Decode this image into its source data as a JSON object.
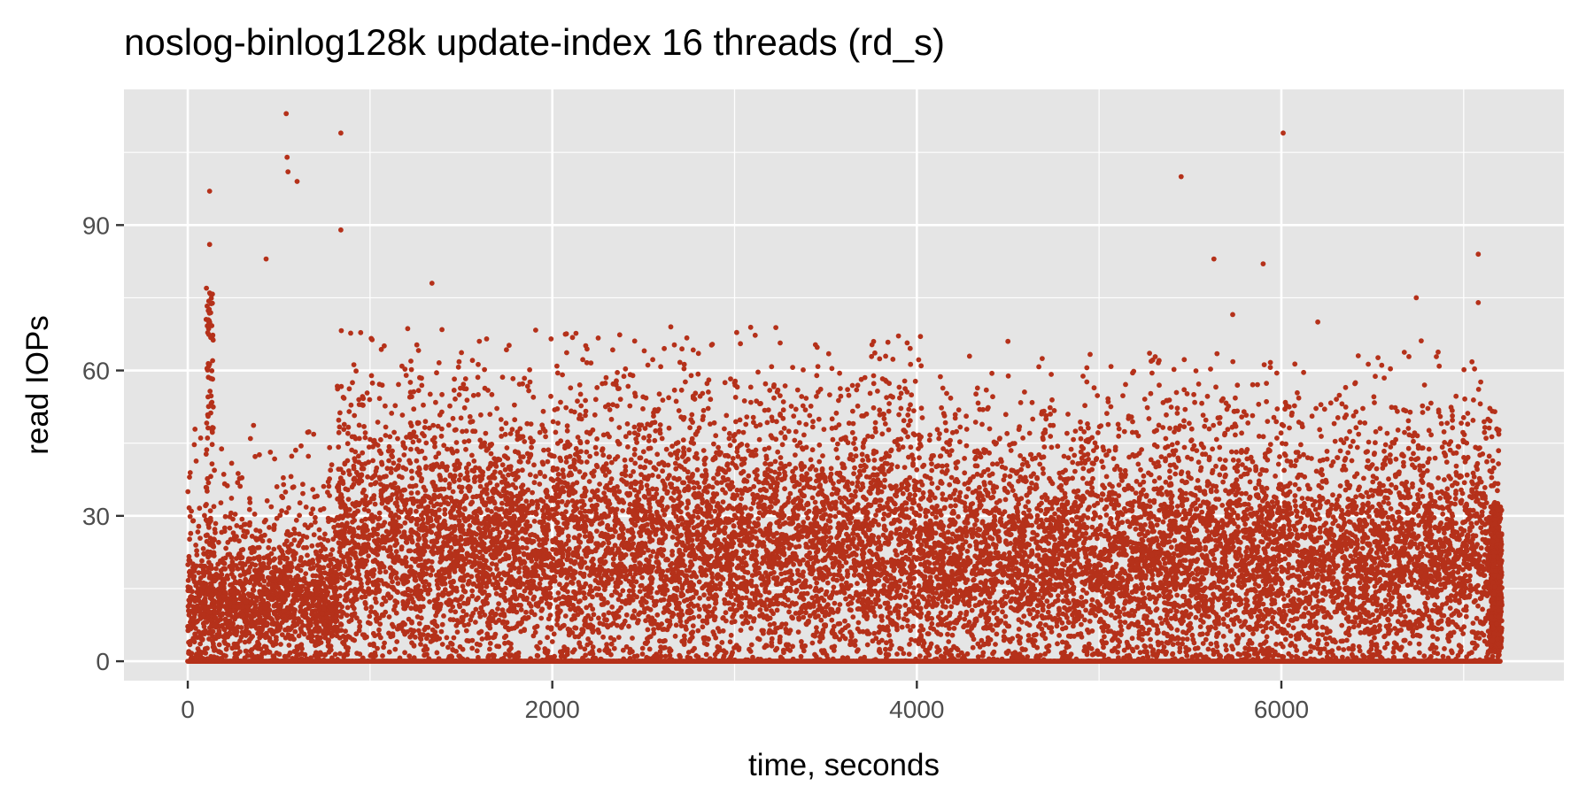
{
  "chart_data": {
    "type": "scatter",
    "title": "noslog-binlog128k update-index 16 threads (rd_s)",
    "xlabel": "time, seconds",
    "ylabel": "read IOPs",
    "xlim": [
      -350,
      7550
    ],
    "ylim": [
      -4,
      118
    ],
    "x_ticks": [
      0,
      2000,
      4000,
      6000
    ],
    "x_tick_labels": [
      "0",
      "2000",
      "4000",
      "6000"
    ],
    "y_ticks": [
      0,
      30,
      60,
      90
    ],
    "y_tick_labels": [
      "0",
      "30",
      "60",
      "90"
    ],
    "grid": true,
    "legend": "none",
    "colors": {
      "points": "#b5311a",
      "panel": "#e5e5e5",
      "grid": "#ffffff"
    },
    "summary_by_phase": [
      {
        "x_range": [
          0,
          820
        ],
        "typical_y_range": [
          0,
          25
        ]
      },
      {
        "x_range": [
          820,
          4000
        ],
        "typical_y_range": [
          2,
          45
        ]
      },
      {
        "x_range": [
          4000,
          7200
        ],
        "typical_y_range": [
          1,
          40
        ]
      }
    ],
    "notable_points": [
      {
        "x": 540,
        "y": 113
      },
      {
        "x": 545,
        "y": 104
      },
      {
        "x": 550,
        "y": 101
      },
      {
        "x": 600,
        "y": 99
      },
      {
        "x": 840,
        "y": 109
      },
      {
        "x": 840,
        "y": 89
      },
      {
        "x": 120,
        "y": 97
      },
      {
        "x": 120,
        "y": 86
      },
      {
        "x": 430,
        "y": 83
      },
      {
        "x": 1340,
        "y": 78
      },
      {
        "x": 5450,
        "y": 100
      },
      {
        "x": 5630,
        "y": 83
      },
      {
        "x": 5900,
        "y": 82
      },
      {
        "x": 6010,
        "y": 109
      },
      {
        "x": 7080,
        "y": 84
      },
      {
        "x": 7080,
        "y": 74
      },
      {
        "x": 6740,
        "y": 75
      },
      {
        "x": 4020,
        "y": 67
      },
      {
        "x": 4500,
        "y": 66
      },
      {
        "x": 2650,
        "y": 69
      },
      {
        "x": 6200,
        "y": 70
      }
    ]
  }
}
